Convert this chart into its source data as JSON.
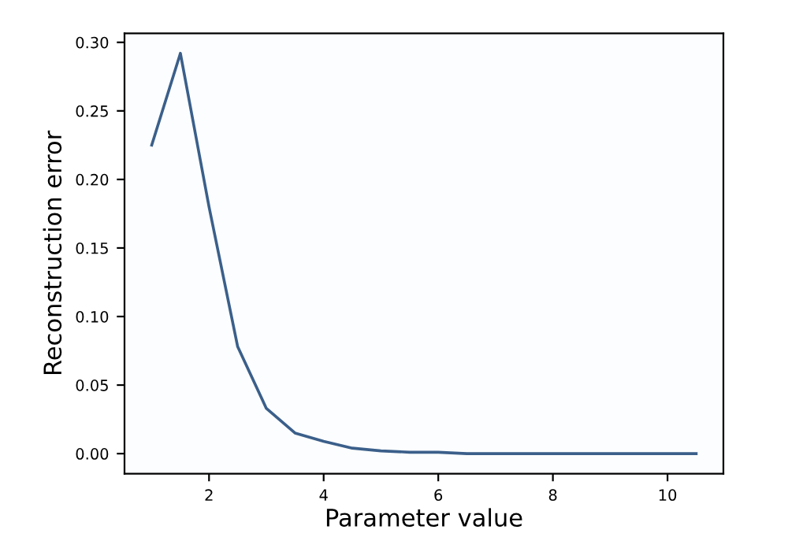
{
  "chart_data": {
    "type": "line",
    "xlabel": "Parameter value",
    "ylabel": "Reconstruction error",
    "x": [
      1,
      1.5,
      2,
      2.5,
      3,
      3.5,
      4,
      4.5,
      5,
      5.5,
      6,
      6.5,
      7,
      7.5,
      8,
      8.5,
      9,
      9.5,
      10,
      10.5
    ],
    "series": [
      {
        "color": "#3b5f8a",
        "values": [
          0.225,
          0.292,
          0.18,
          0.078,
          0.033,
          0.015,
          0.009,
          0.004,
          0.002,
          0.001,
          0.001,
          0.0,
          0.0,
          0.0,
          0.0,
          0.0,
          0.0,
          0.0,
          0.0,
          0.0
        ]
      }
    ],
    "xlim": [
      0.525,
      10.975
    ],
    "ylim": [
      -0.0146,
      0.3066
    ],
    "xticks": [
      2,
      4,
      6,
      8,
      10
    ],
    "yticks": [
      {
        "value": 0,
        "label": "0.00"
      },
      {
        "value": 0.05,
        "label": "0.05"
      },
      {
        "value": 0.1,
        "label": "0.10"
      },
      {
        "value": 0.15,
        "label": "0.15"
      },
      {
        "value": 0.2,
        "label": "0.20"
      },
      {
        "value": 0.25,
        "label": "0.25"
      },
      {
        "value": 0.3,
        "label": "0.30"
      }
    ],
    "grid": false,
    "legend": false
  }
}
